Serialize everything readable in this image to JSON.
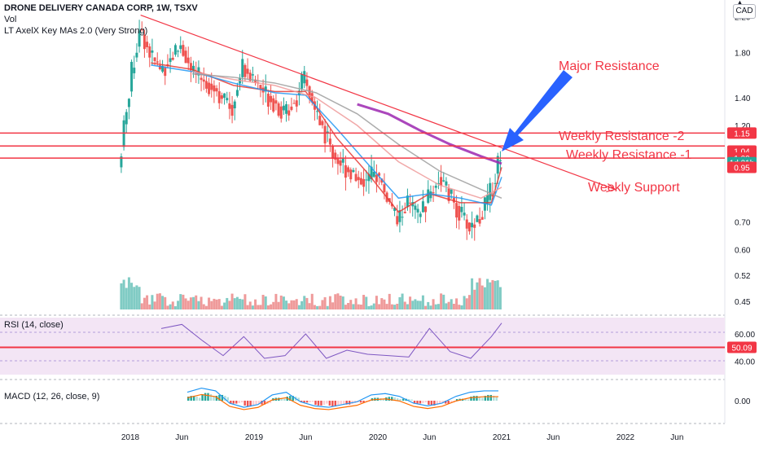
{
  "header": {
    "symbol_line": "DRONE DELIVERY CANADA CORP, 1W, TSXV",
    "vol_label": "Vol",
    "indicator_label": "LT AxelX Key MAs 2.0 (Very Strong)",
    "currency": "CAD"
  },
  "annotations": {
    "major_resistance": "Major Resistance",
    "weekly_resistance_2": "Weekly Resistance -2",
    "weekly_resistance_1": "Weekly Resistance -1",
    "weekly_support": "Weekly Support"
  },
  "colors": {
    "up": "#26a69a",
    "down": "#ef5350",
    "annotation": "#f23645",
    "arrow": "#2962ff",
    "rsi_line": "#7e57c2",
    "rsi_band": "#f3e5f5",
    "ma_purple": "#9c27b0",
    "ma_red": "#e53935",
    "ma_blue": "#2196f3",
    "ma_pink": "#ef9a9a",
    "ma_gray": "#9e9e9e"
  },
  "chart_data": [
    {
      "type": "candlestick",
      "title": "DRONE DELIVERY CANADA CORP, 1W, TSXV",
      "scale": "log",
      "ylim": [
        0.43,
        2.35
      ],
      "y_ticks": [
        "2.20",
        "1.80",
        "1.40",
        "1.20",
        "1.00",
        "0.70",
        "0.60",
        "0.52",
        "0.45"
      ],
      "x_ticks": [
        "2018",
        "Jun",
        "2019",
        "Jun",
        "2020",
        "Jun",
        "2021",
        "Jun",
        "2022",
        "Jun"
      ],
      "price_badges": [
        {
          "label": "1.15",
          "value": 1.15
        },
        {
          "label": "1.04",
          "value": 1.04
        },
        {
          "label": "1.00",
          "value": 1.0
        },
        {
          "label": "1d 21h",
          "value": 0.975
        },
        {
          "label": "0.95",
          "value": 0.95
        }
      ],
      "horizontal_levels": [
        1.15,
        1.07,
        1.0
      ],
      "trendline": {
        "from": [
          "2018-02",
          2.22
        ],
        "to": [
          "2021-12",
          0.84
        ]
      },
      "series": [
        {
          "kind": "price",
          "x": [
            "2017-12",
            "2018-01",
            "2018-02",
            "2018-03",
            "2018-04",
            "2018-05",
            "2018-06",
            "2018-07",
            "2018-08",
            "2018-09",
            "2018-10",
            "2018-11",
            "2018-12",
            "2019-01",
            "2019-02",
            "2019-03",
            "2019-04",
            "2019-05",
            "2019-06",
            "2019-07",
            "2019-08",
            "2019-09",
            "2019-10",
            "2019-11",
            "2019-12",
            "2020-01",
            "2020-02",
            "2020-03",
            "2020-04",
            "2020-05",
            "2020-06",
            "2020-07",
            "2020-08",
            "2020-09",
            "2020-10",
            "2020-11",
            "2020-12",
            "2021-01"
          ],
          "close": [
            0.95,
            1.45,
            2.05,
            1.8,
            1.62,
            1.75,
            1.88,
            1.62,
            1.55,
            1.5,
            1.4,
            1.32,
            1.68,
            1.55,
            1.45,
            1.38,
            1.28,
            1.38,
            1.55,
            1.3,
            1.15,
            1.0,
            0.95,
            0.9,
            0.88,
            0.92,
            0.8,
            0.7,
            0.78,
            0.72,
            0.8,
            0.9,
            0.82,
            0.74,
            0.68,
            0.72,
            0.82,
            1.02
          ]
        },
        {
          "name": "",
          "kind": "ma",
          "color": "#9c27b0",
          "x": [
            "2019-11",
            "2020-02",
            "2020-05",
            "2020-08",
            "2020-11",
            "2021-01"
          ],
          "values": [
            1.35,
            1.28,
            1.17,
            1.08,
            1.01,
            0.97
          ]
        },
        {
          "name": "",
          "kind": "ma",
          "color": "#e53935",
          "x": [
            "2018-03",
            "2018-07",
            "2018-11",
            "2019-03",
            "2019-06",
            "2019-09",
            "2019-12",
            "2020-03",
            "2020-06",
            "2020-09",
            "2020-12",
            "2021-01"
          ],
          "values": [
            1.7,
            1.64,
            1.5,
            1.45,
            1.45,
            1.12,
            0.92,
            0.74,
            0.82,
            0.78,
            0.78,
            0.95
          ]
        },
        {
          "name": "",
          "kind": "ma",
          "color": "#2196f3",
          "x": [
            "2018-03",
            "2018-07",
            "2018-11",
            "2019-03",
            "2019-06",
            "2019-09",
            "2019-12",
            "2020-03",
            "2020-06",
            "2020-09",
            "2020-12",
            "2021-01"
          ],
          "values": [
            1.68,
            1.62,
            1.52,
            1.44,
            1.42,
            1.18,
            0.97,
            0.8,
            0.82,
            0.8,
            0.77,
            0.9
          ]
        },
        {
          "name": "",
          "kind": "ma",
          "color": "#ef9a9a",
          "x": [
            "2018-07",
            "2018-11",
            "2019-03",
            "2019-07",
            "2019-11",
            "2020-03",
            "2020-07",
            "2020-11",
            "2021-01"
          ],
          "values": [
            1.62,
            1.55,
            1.5,
            1.4,
            1.2,
            0.98,
            0.86,
            0.8,
            0.85
          ]
        },
        {
          "name": "",
          "kind": "ma",
          "color": "#9e9e9e",
          "x": [
            "2018-07",
            "2018-11",
            "2019-03",
            "2019-07",
            "2019-11",
            "2020-03",
            "2020-07",
            "2020-11",
            "2021-01"
          ],
          "values": [
            1.6,
            1.57,
            1.52,
            1.44,
            1.28,
            1.08,
            0.93,
            0.84,
            0.8
          ]
        }
      ]
    },
    {
      "type": "line",
      "title": "RSI (14, close)",
      "ylim": [
        30,
        72
      ],
      "y_ticks": [
        "60.00",
        "40.00"
      ],
      "badge": {
        "label": "50.09",
        "value": 50.09
      },
      "x": [
        "2018-04",
        "2018-06",
        "2018-08",
        "2018-10",
        "2018-12",
        "2019-02",
        "2019-04",
        "2019-06",
        "2019-08",
        "2019-10",
        "2019-12",
        "2020-02",
        "2020-04",
        "2020-06",
        "2020-08",
        "2020-10",
        "2020-12",
        "2021-01"
      ],
      "values": [
        64,
        67,
        55,
        44,
        58,
        42,
        44,
        60,
        42,
        48,
        45,
        44,
        43,
        64,
        47,
        42,
        58,
        68
      ]
    },
    {
      "type": "bar",
      "title": "MACD (12, 26, close, 9)",
      "y_ticks": [
        "0.00"
      ],
      "histogram": [
        0.05,
        0.08,
        0.06,
        -0.03,
        -0.06,
        -0.04,
        0.03,
        0.05,
        -0.02,
        -0.05,
        -0.06,
        -0.04,
        -0.02,
        0.03,
        0.04,
        0.02,
        -0.03,
        -0.05,
        -0.03,
        0.02,
        0.05,
        0.06
      ]
    }
  ]
}
